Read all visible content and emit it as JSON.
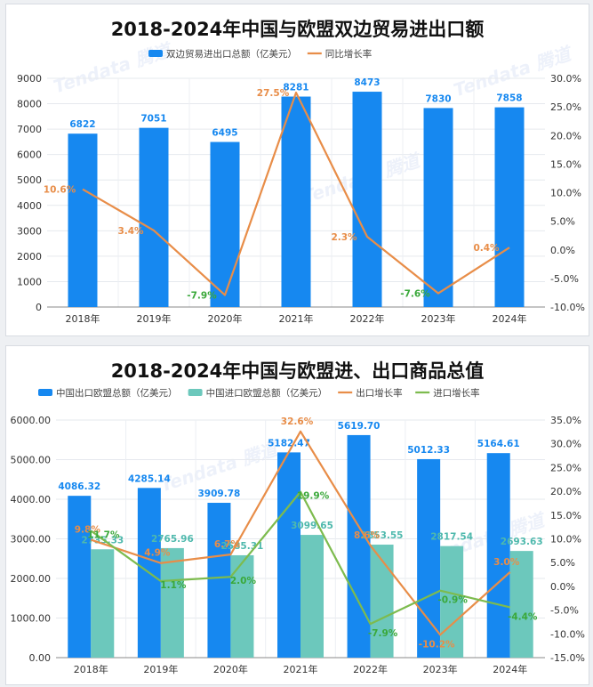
{
  "watermark": "Tendata 腾道",
  "colors": {
    "blue": "#1688f0",
    "teal": "#6cc8bc",
    "orange": "#e88d48",
    "green": "#7dbb4e",
    "label_blue": "#1688f0",
    "label_orange": "#e88d48",
    "label_green": "#3aa83a",
    "label_teal": "#4fb9ad"
  },
  "chart_data": [
    {
      "type": "bar+line",
      "title": "2018-2024年中国与欧盟双边贸易进出口额",
      "categories": [
        "2018年",
        "2019年",
        "2020年",
        "2021年",
        "2022年",
        "2023年",
        "2024年"
      ],
      "left_axis": {
        "min": 0,
        "max": 9000,
        "step": 1000,
        "ticks": [
          "0",
          "1000",
          "2000",
          "3000",
          "4000",
          "5000",
          "6000",
          "7000",
          "8000",
          "9000"
        ]
      },
      "right_axis": {
        "min": -10,
        "max": 30,
        "step": 5,
        "ticks": [
          "-10.0%",
          "-5.0%",
          "0.0%",
          "5.0%",
          "10.0%",
          "15.0%",
          "20.0%",
          "25.0%",
          "30.0%"
        ]
      },
      "series": [
        {
          "name": "双边贸易进出口总额（亿美元）",
          "type": "bar",
          "axis": "left",
          "values": [
            6822,
            7051,
            6495,
            8281,
            8473,
            7830,
            7858
          ],
          "labels": [
            "6822",
            "7051",
            "6495",
            "8281",
            "8473",
            "7830",
            "7858"
          ]
        },
        {
          "name": "同比增长率",
          "type": "line",
          "axis": "right",
          "values": [
            10.6,
            3.4,
            -7.9,
            27.5,
            2.3,
            -7.6,
            0.4
          ],
          "labels": [
            "10.6%",
            "3.4%",
            "-7.9%",
            "27.5%",
            "2.3%",
            "-7.6%",
            "0.4%"
          ]
        }
      ]
    },
    {
      "type": "bar+line",
      "title": "2018-2024年中国与欧盟进、出口商品总值",
      "categories": [
        "2018年",
        "2019年",
        "2020年",
        "2021年",
        "2022年",
        "2023年",
        "2024年"
      ],
      "left_axis": {
        "min": 0,
        "max": 6000,
        "step": 1000,
        "ticks": [
          "0.00",
          "1000.00",
          "2000.00",
          "3000.00",
          "4000.00",
          "5000.00",
          "6000.00"
        ]
      },
      "right_axis": {
        "min": -15,
        "max": 35,
        "step": 5,
        "ticks": [
          "-15.0%",
          "-10.0%",
          "-5.0%",
          "0.0%",
          "5.0%",
          "10.0%",
          "15.0%",
          "20.0%",
          "25.0%",
          "30.0%",
          "35.0%"
        ]
      },
      "series": [
        {
          "name": "中国出口欧盟总额（亿美元）",
          "type": "bar",
          "axis": "left",
          "values": [
            4086.32,
            4285.14,
            3909.78,
            5182.47,
            5619.7,
            5012.33,
            5164.61
          ],
          "labels": [
            "4086.32",
            "4285.14",
            "3909.78",
            "5182.47",
            "5619.70",
            "5012.33",
            "5164.61"
          ]
        },
        {
          "name": "中国进口欧盟总额（亿美元）",
          "type": "bar",
          "axis": "left",
          "values": [
            2735.33,
            2765.96,
            2585.31,
            3099.65,
            2853.55,
            2817.54,
            2693.63
          ],
          "labels": [
            "2735.33",
            "2765.96",
            "2585.31",
            "3099.65",
            "2853.55",
            "2817.54",
            "2693.63"
          ]
        },
        {
          "name": "出口增长率",
          "type": "line",
          "axis": "right",
          "values": [
            9.8,
            4.9,
            6.7,
            32.6,
            8.6,
            -10.2,
            3.0
          ],
          "labels": [
            "9.8%",
            "4.9%",
            "6.7%",
            "32.6%",
            "8.6%",
            "-10.2%",
            "3.0%"
          ]
        },
        {
          "name": "进口增长率",
          "type": "line",
          "axis": "right",
          "values": [
            11.7,
            1.1,
            2.0,
            19.9,
            -7.9,
            -0.9,
            -4.4
          ],
          "labels": [
            "11.7%",
            "1.1%",
            "2.0%",
            "19.9%",
            "-7.9%",
            "-0.9%",
            "-4.4%"
          ]
        }
      ]
    }
  ]
}
